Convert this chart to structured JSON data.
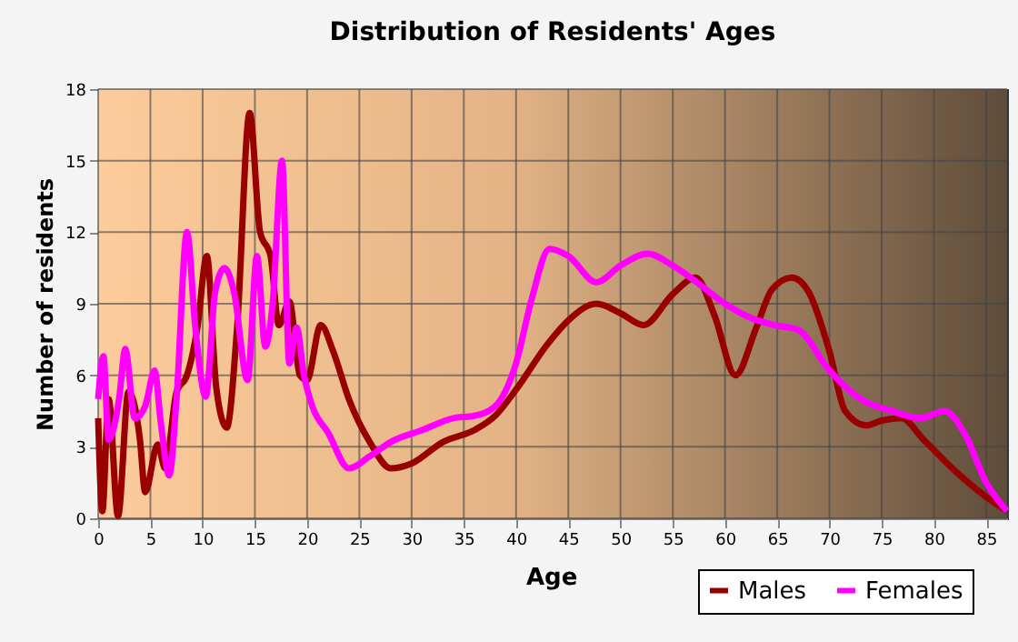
{
  "chart_data": {
    "type": "line",
    "title": "Distribution of Residents' Ages",
    "xlabel": "Age",
    "ylabel": "Number of residents",
    "xlim": [
      0,
      87
    ],
    "xticks": [
      0,
      5,
      10,
      15,
      20,
      25,
      30,
      35,
      40,
      45,
      50,
      55,
      60,
      65,
      70,
      75,
      80,
      85
    ],
    "ylim": [
      0,
      18
    ],
    "yticks": [
      0,
      3,
      6,
      9,
      12,
      15,
      18
    ],
    "grid": true,
    "legend": "bottom right",
    "series": [
      {
        "name": "Males",
        "color": "#990000",
        "x": [
          0,
          0.4,
          1,
          1.9,
          2.9,
          4,
          4.5,
          5.7,
          6.4,
          7.5,
          8.5,
          9.5,
          10.4,
          11.3,
          12.3,
          13.3,
          14.5,
          15.5,
          16.5,
          17.3,
          18.3,
          19.3,
          20,
          21.3,
          22.5,
          24,
          26,
          28,
          30,
          33,
          36,
          38,
          40,
          43,
          45,
          47.7,
          50,
          52.2,
          55,
          57.2,
          59,
          61,
          63,
          64.5,
          66.4,
          68,
          70,
          71.5,
          73.5,
          75,
          76.9,
          79,
          82,
          85,
          87
        ],
        "values": [
          4.2,
          0.3,
          5,
          0.1,
          5.3,
          3.3,
          1.1,
          3.1,
          2.1,
          5.3,
          6,
          8,
          11,
          5.5,
          3.8,
          8,
          17,
          12,
          11,
          8.1,
          9.1,
          6,
          5.8,
          8.1,
          7,
          5,
          3.2,
          2.1,
          2.3,
          3.2,
          3.7,
          4.3,
          5.4,
          7.3,
          8.3,
          9,
          8.6,
          8.1,
          9.4,
          10.1,
          8.5,
          6,
          8,
          9.6,
          10.1,
          9.5,
          7,
          4.5,
          3.9,
          4.1,
          4.2,
          3.3,
          2,
          0.9,
          0.3
        ]
      },
      {
        "name": "Females",
        "color": "#ff00ff",
        "x": [
          0,
          0.5,
          1,
          2,
          2.6,
          3.5,
          4.5,
          5.4,
          6,
          6.8,
          7.5,
          8.5,
          9.3,
          10.3,
          11.2,
          12.1,
          13,
          14.3,
          15.2,
          16,
          16.7,
          17.6,
          18.3,
          19,
          19.7,
          20.5,
          22,
          24,
          26,
          28,
          31,
          34,
          36,
          38,
          40,
          41.5,
          43.2,
          45,
          47.7,
          50,
          52.6,
          55,
          57,
          60,
          62.5,
          64.8,
          67,
          70,
          73,
          76,
          78.7,
          81,
          83,
          85,
          87
        ],
        "values": [
          5,
          6.8,
          3.3,
          5,
          7.1,
          4.2,
          4.7,
          6.2,
          4,
          1.8,
          5,
          12,
          8,
          5.1,
          9.5,
          10.5,
          9.5,
          5.8,
          11,
          7.2,
          9,
          15,
          6.5,
          8,
          6,
          4.7,
          3.6,
          2.1,
          2.6,
          3.2,
          3.7,
          4.2,
          4.3,
          4.7,
          6.5,
          9.2,
          11.3,
          11,
          9.9,
          10.6,
          11.1,
          10.6,
          10,
          9,
          8.4,
          8.1,
          7.9,
          6.2,
          5,
          4.5,
          4.2,
          4.5,
          3.5,
          1.5,
          0.3
        ]
      }
    ]
  }
}
